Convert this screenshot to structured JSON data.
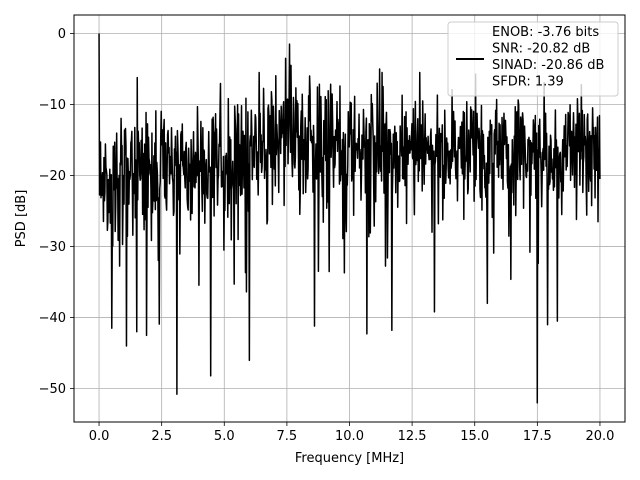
{
  "chart_data": {
    "type": "line",
    "title": "",
    "xlabel": "Frequency [MHz]",
    "ylabel": "PSD [dB]",
    "xlim": [
      -1.0,
      21.0
    ],
    "ylim": [
      -54.7,
      2.6
    ],
    "x_ticks": [
      0.0,
      2.5,
      5.0,
      7.5,
      10.0,
      12.5,
      15.0,
      17.5,
      20.0
    ],
    "x_tick_labels": [
      "0.0",
      "2.5",
      "5.0",
      "7.5",
      "10.0",
      "12.5",
      "15.0",
      "17.5",
      "20.0"
    ],
    "y_ticks": [
      0,
      -10,
      -20,
      -30,
      -40,
      -50
    ],
    "y_tick_labels": [
      "0",
      "−10",
      "−20",
      "−30",
      "−40",
      "−50"
    ],
    "grid": true,
    "legend_position": "top-right",
    "series": [
      {
        "name": "ENOB: -3.76 bits\nSNR: -20.82 dB\nSINAD: -20.86 dB\nSFDR: 1.39",
        "color": "#000000",
        "x_range": [
          0.0,
          20.0
        ],
        "approx_points": 1024,
        "baseline_envelope": {
          "x": [
            0.0,
            0.5,
            1.0,
            2.0,
            3.0,
            4.0,
            5.0,
            6.0,
            7.0,
            7.5,
            8.0,
            9.0,
            10.0,
            11.0,
            12.0,
            13.0,
            14.0,
            15.0,
            16.0,
            17.0,
            18.0,
            19.0,
            20.0
          ],
          "y": [
            -20,
            -20,
            -19,
            -19,
            -19,
            -19,
            -18,
            -17,
            -15,
            -13,
            -15,
            -16,
            -16,
            -16,
            -16,
            -16,
            -17,
            -16,
            -16,
            -17,
            -17,
            -16,
            -17
          ]
        },
        "peaks": [
          {
            "x": 0.0,
            "y": 0
          },
          {
            "x": 7.6,
            "y": -1.5
          },
          {
            "x": 7.45,
            "y": -3.5
          },
          {
            "x": 11.2,
            "y": -5.0
          },
          {
            "x": 11.3,
            "y": -5.5
          },
          {
            "x": 12.8,
            "y": -5.5
          },
          {
            "x": 11.1,
            "y": -7.0
          },
          {
            "x": 6.4,
            "y": -5.5
          }
        ],
        "dips": [
          {
            "x": 0.5,
            "y": -41.5
          },
          {
            "x": 1.1,
            "y": -44.0
          },
          {
            "x": 1.5,
            "y": -42.0
          },
          {
            "x": 1.9,
            "y": -42.5
          },
          {
            "x": 3.1,
            "y": -50.8
          },
          {
            "x": 4.45,
            "y": -48.2
          },
          {
            "x": 8.6,
            "y": -41.2
          },
          {
            "x": 10.7,
            "y": -42.3
          },
          {
            "x": 11.7,
            "y": -41.8
          },
          {
            "x": 13.4,
            "y": -39.2
          },
          {
            "x": 15.5,
            "y": -38.0
          },
          {
            "x": 17.5,
            "y": -52.0
          },
          {
            "x": 17.9,
            "y": -41.0
          },
          {
            "x": 18.3,
            "y": -40.5
          }
        ]
      }
    ]
  }
}
